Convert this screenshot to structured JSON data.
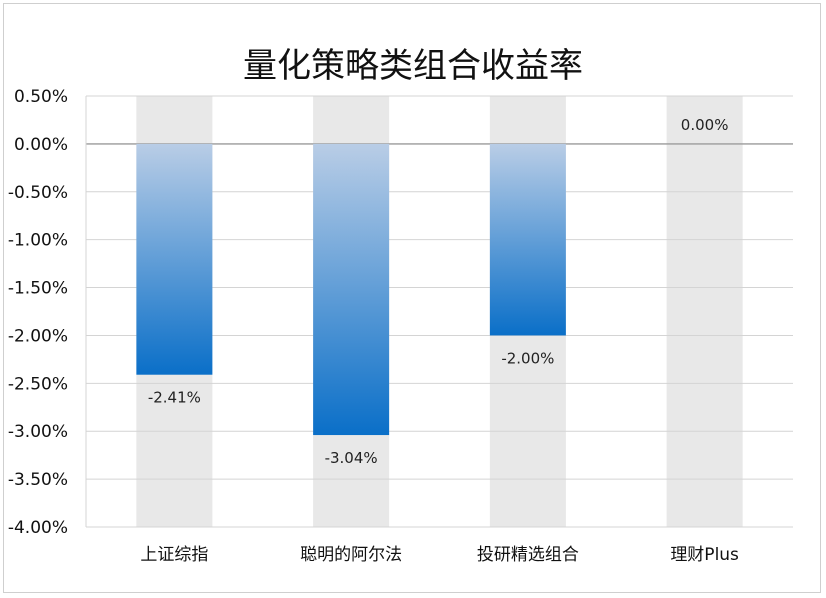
{
  "chart_data": {
    "type": "bar",
    "title": "量化策略类组合收益率",
    "categories": [
      "上证综指",
      "聪明的阿尔法",
      "投研精选组合",
      "理财Plus"
    ],
    "values": [
      -2.41,
      -3.04,
      -2.0,
      0.0
    ],
    "data_labels": [
      "-2.41%",
      "-3.04%",
      "-2.00%",
      "0.00%"
    ],
    "y_ticks": [
      "0.50%",
      "0.00%",
      "-0.50%",
      "-1.00%",
      "-1.50%",
      "-2.00%",
      "-2.50%",
      "-3.00%",
      "-3.50%",
      "-4.00%"
    ],
    "ylim": [
      -4.0,
      0.5
    ],
    "grid": true,
    "legend": "none",
    "colors": {
      "bar_top": "#b9cde6",
      "bar_bottom": "#0a6fc8",
      "band": "#e8e8e8",
      "grid": "#d4d4d4",
      "zero_line": "#9a9a9a"
    }
  }
}
